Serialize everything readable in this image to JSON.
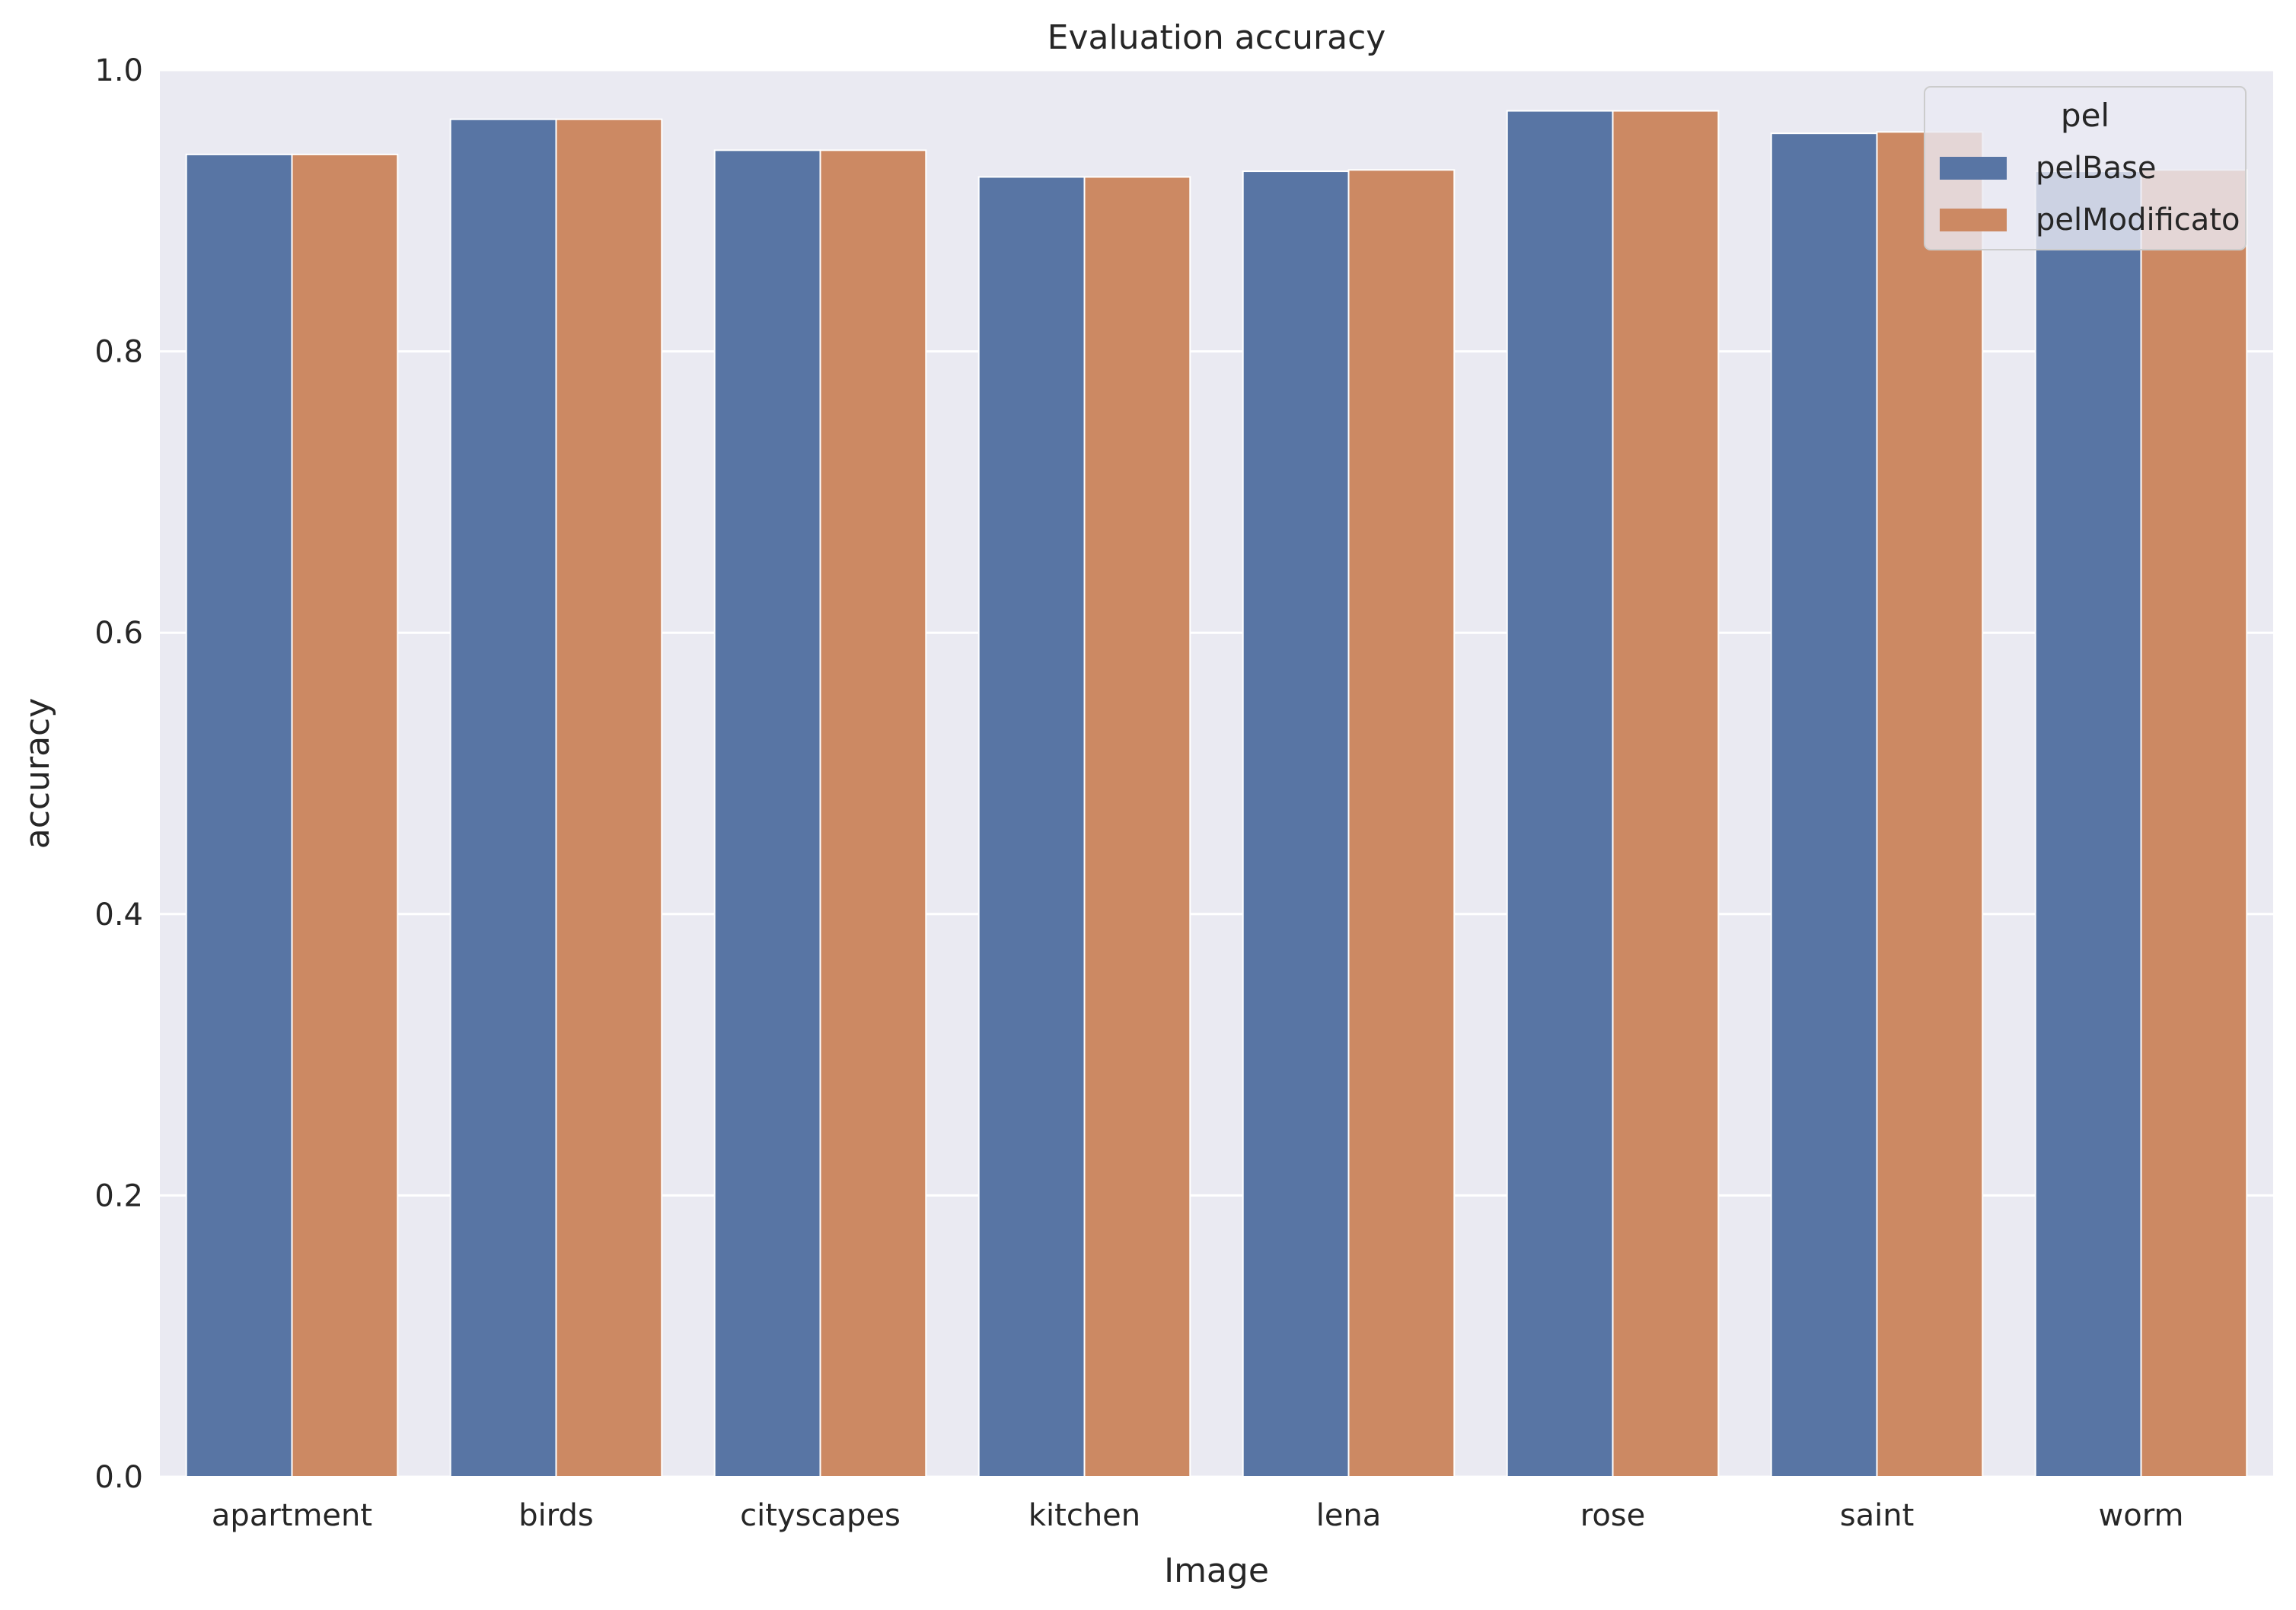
{
  "chart_data": {
    "type": "bar",
    "title": "Evaluation accuracy",
    "xlabel": "Image",
    "ylabel": "accuracy",
    "ylim": [
      0,
      1.0
    ],
    "yticks": [
      0.0,
      0.2,
      0.4,
      0.6,
      0.8,
      1.0
    ],
    "ytick_labels": [
      "0.0",
      "0.2",
      "0.4",
      "0.6",
      "0.8",
      "1.0"
    ],
    "grid": true,
    "categories": [
      "apartment",
      "birds",
      "cityscapes",
      "kitchen",
      "lena",
      "rose",
      "saint",
      "worm"
    ],
    "legend": {
      "title": "pel",
      "position": "top-right"
    },
    "series": [
      {
        "name": "pelBase",
        "color": "#5875a4",
        "values": [
          0.94,
          0.965,
          0.943,
          0.924,
          0.928,
          0.971,
          0.955,
          0.928
        ]
      },
      {
        "name": "pelModificato",
        "color": "#cc8963",
        "values": [
          0.94,
          0.965,
          0.943,
          0.924,
          0.929,
          0.971,
          0.956,
          0.929
        ]
      }
    ]
  },
  "colors": {
    "plot_background": "#eaeaf2",
    "grid": "#ffffff",
    "text": "#262626"
  }
}
